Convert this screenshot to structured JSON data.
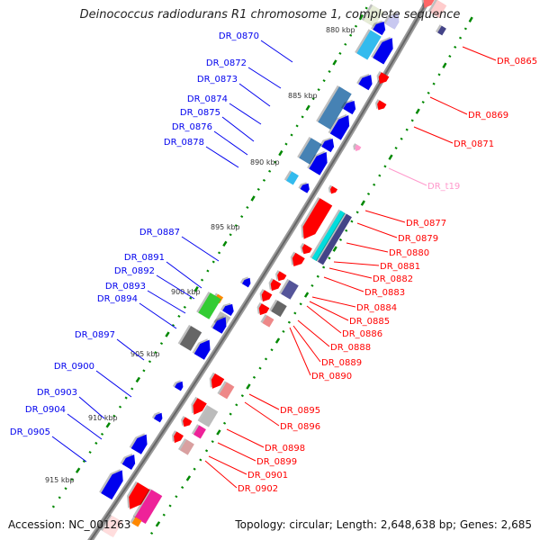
{
  "title": "Deinococcus radiodurans R1 chromosome 1, complete sequence",
  "footer": {
    "accession": "Accession: NC_001263",
    "summary": "Topology: circular; Length: 2,648,638 bp; Genes: 2,685"
  },
  "ticks": [
    "880 kbp",
    "885 kbp",
    "890 kbp",
    "895 kbp",
    "900 kbp",
    "905 kbp",
    "910 kbp",
    "915 kbp"
  ],
  "forward_genes": [
    "DR_0870",
    "DR_0872",
    "DR_0873",
    "DR_0874",
    "DR_0875",
    "DR_0876",
    "DR_0878",
    "DR_0887",
    "DR_0891",
    "DR_0892",
    "DR_0893",
    "DR_0894",
    "DR_0897",
    "DR_0900",
    "DR_0903",
    "DR_0904",
    "DR_0905"
  ],
  "reverse_genes": [
    "DR_0865",
    "DR_0869",
    "DR_0871",
    "DR_t19",
    "DR_0877",
    "DR_0879",
    "DR_0880",
    "DR_0881",
    "DR_0882",
    "DR_0883",
    "DR_0884",
    "DR_0885",
    "DR_0886",
    "DR_0888",
    "DR_0889",
    "DR_0890",
    "DR_0895",
    "DR_0896",
    "DR_0898",
    "DR_0899",
    "DR_0901",
    "DR_0902"
  ],
  "colors": {
    "forward": "#0000ee",
    "reverse": "#ff0000",
    "trna": "#ff99cc",
    "backbone": "#888888",
    "tick": "#008800"
  }
}
